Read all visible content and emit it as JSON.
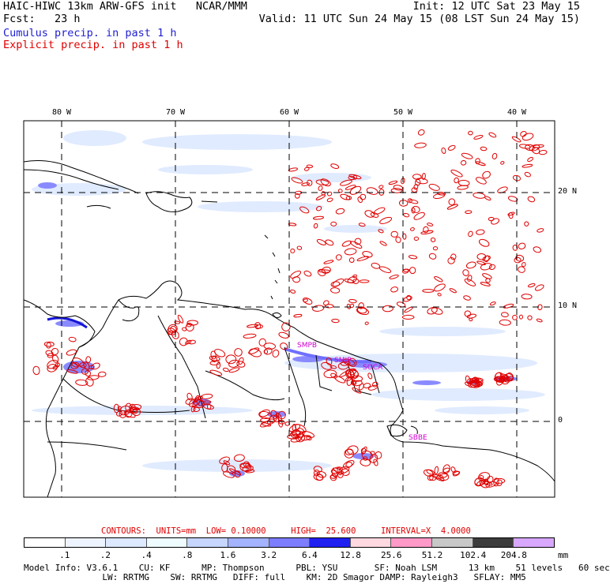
{
  "header": {
    "left_line1": "HAIC-HIWC 13km ARW-GFS init   NCAR/MMM",
    "left_line2": "Fcst:   23 h",
    "right_line1": "Init: 12 UTC Sat 23 May 15",
    "right_line2": "Valid: 11 UTC Sun 24 May 15 (08 LST Sun 24 May 15)",
    "legend_cumulus": "Cumulus precip. in past 1 h",
    "legend_explicit": "Explicit precip. in past 1 h"
  },
  "map": {
    "lon_labels": [
      "80 W",
      "70 W",
      "60 W",
      "50 W",
      "40 W"
    ],
    "lat_labels": [
      "20 N",
      "10 N",
      "0"
    ],
    "stations": [
      "SMPB",
      "SMJP",
      "SOCA",
      "SBBE"
    ],
    "colors": {
      "cumulus": "#1f1fd0",
      "explicit": "#e00000",
      "station": "#d000d0",
      "coast": "#000000"
    }
  },
  "contours": {
    "text": "CONTOURS:  UNITS=mm  LOW= 0.10000     HIGH=  25.600     INTERVAL=X  4.0000"
  },
  "colorbar": {
    "ticks": [
      ".1",
      ".2",
      ".4",
      ".8",
      "1.6",
      "3.2",
      "6.4",
      "12.8",
      "25.6",
      "51.2",
      "102.4",
      "204.8"
    ],
    "unit": "mm",
    "colors": [
      "#ffffff",
      "#eef4ff",
      "#dde9ff",
      "#eefcff",
      "#c6d6ff",
      "#a3b3ff",
      "#7d7dff",
      "#2020f0",
      "#ffd8e0",
      "#ff99c8",
      "#c8c8c8",
      "#3c3c3c",
      "#d8a8ff"
    ]
  },
  "model_info": {
    "line1": "Model Info: V3.6.1    CU: KF      MP: Thompson      PBL: YSU       SF: Noah LSM      13 km    51 levels   60 sec",
    "line2": "               LW: RRTMG    SW: RRTMG   DIFF: full    KM: 2D Smagor DAMP: Rayleigh3   SFLAY: MM5"
  }
}
